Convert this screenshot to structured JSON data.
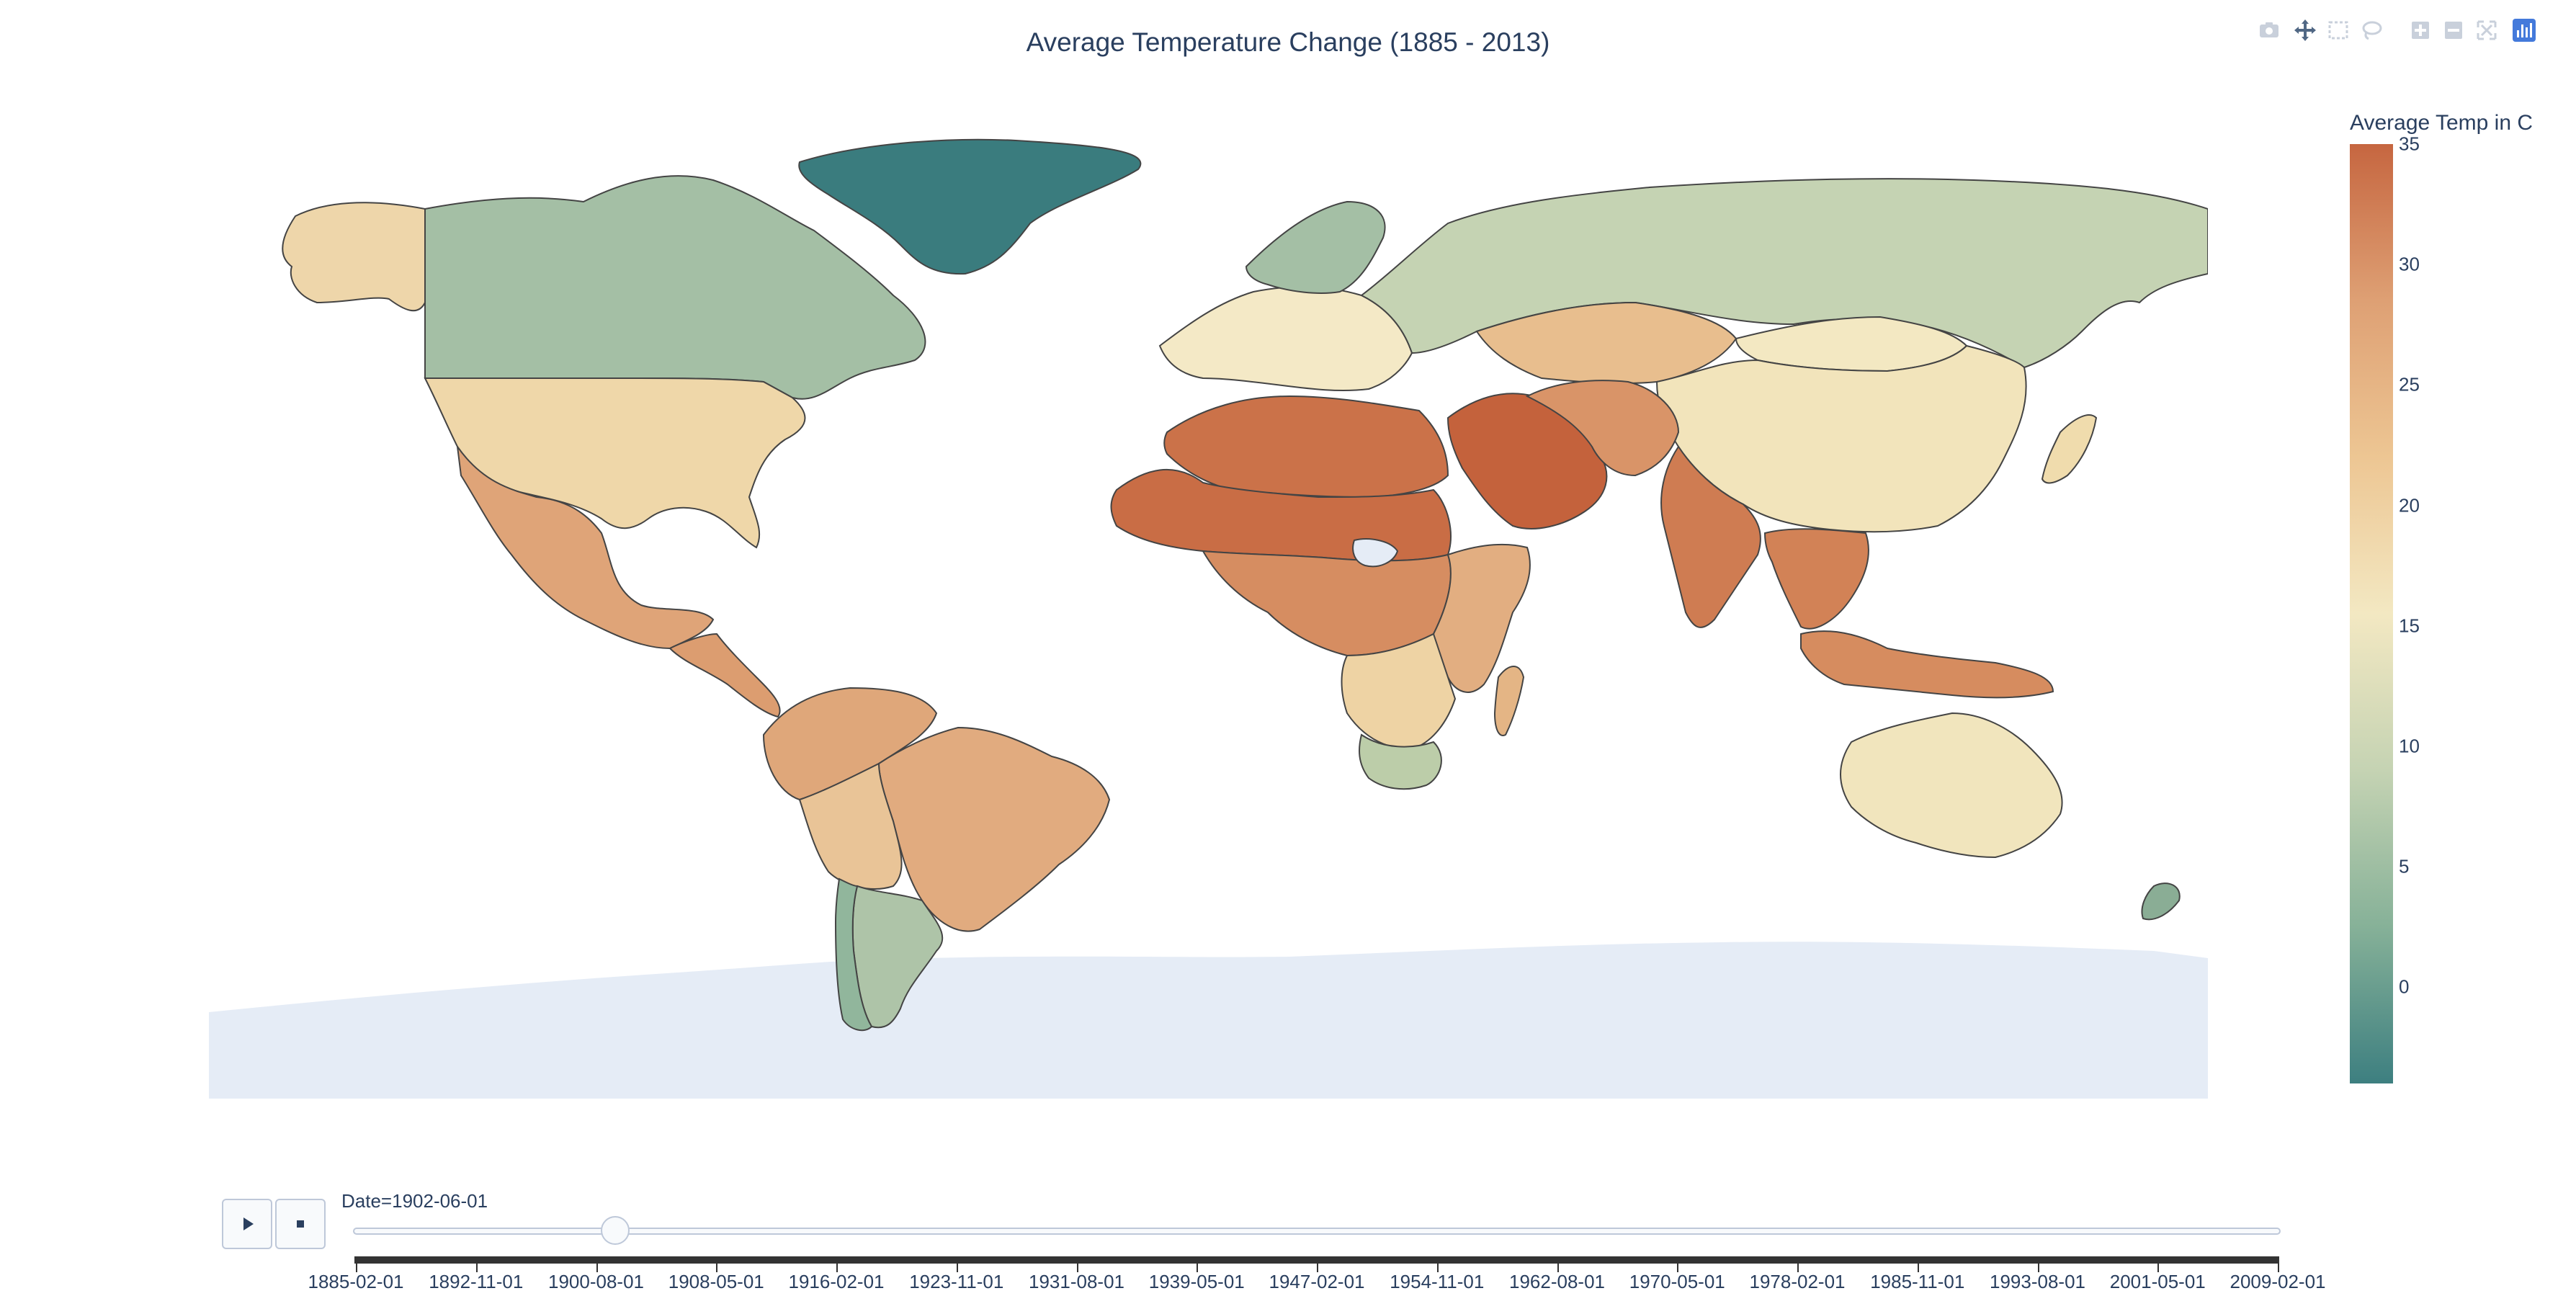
{
  "title": "Average Temperature Change (1885 - 2013)",
  "modebar": {
    "buttons": [
      {
        "name": "camera-icon",
        "label": "Download plot as a png"
      },
      {
        "name": "pan-icon",
        "label": "Pan"
      },
      {
        "name": "box-select-icon",
        "label": "Box Select"
      },
      {
        "name": "lasso-select-icon",
        "label": "Lasso Select"
      },
      {
        "name": "zoom-in-icon",
        "label": "Zoom in"
      },
      {
        "name": "zoom-out-icon",
        "label": "Zoom out"
      },
      {
        "name": "reset-view-icon",
        "label": "Reset"
      },
      {
        "name": "plotly-logo-icon",
        "label": "Produced with Plotly"
      }
    ]
  },
  "colorbar": {
    "title": "Average Temp in C",
    "min": -4,
    "max": 35,
    "ticks": [
      "35",
      "30",
      "25",
      "20",
      "15",
      "10",
      "5",
      "0"
    ],
    "tick_values": [
      35,
      30,
      25,
      20,
      15,
      10,
      5,
      0
    ],
    "colors": [
      "#3d7f80",
      "#86b198",
      "#c5d3b3",
      "#f3e8c2",
      "#edc693",
      "#dea074",
      "#c66640"
    ]
  },
  "slider": {
    "prefix": "Date=",
    "current": "1902-06-01",
    "current_label": "Date=1902-06-01",
    "progress": 0.135,
    "play_label": "Play",
    "stop_label": "Stop",
    "steps": [
      "1885-02-01",
      "1892-11-01",
      "1900-08-01",
      "1908-05-01",
      "1916-02-01",
      "1923-11-01",
      "1931-08-01",
      "1939-05-01",
      "1947-02-01",
      "1954-11-01",
      "1962-08-01",
      "1970-05-01",
      "1978-02-01",
      "1985-11-01",
      "1993-08-01",
      "2001-05-01",
      "2009-02-01"
    ]
  },
  "map_data": {
    "type": "choropleth",
    "colors": {
      "land": "#e5ecf6",
      "border": "#444444"
    },
    "regions": [
      {
        "name": "Greenland",
        "value": -3,
        "color": "#3a7c7e"
      },
      {
        "name": "Canada",
        "value": 6,
        "color": "#a4bfa5"
      },
      {
        "name": "Alaska",
        "value": 20,
        "color": "#eed6aa"
      },
      {
        "name": "United States",
        "value": 19,
        "color": "#efd7a9"
      },
      {
        "name": "Mexico",
        "value": 25,
        "color": "#dfa478"
      },
      {
        "name": "Central America",
        "value": 26,
        "color": "#dc9d70"
      },
      {
        "name": "Colombia-Venezuela",
        "value": 25,
        "color": "#dfa77a"
      },
      {
        "name": "Brazil",
        "value": 24,
        "color": "#e1ab7f"
      },
      {
        "name": "Peru-Bolivia",
        "value": 21,
        "color": "#e9c497"
      },
      {
        "name": "Argentina",
        "value": 9,
        "color": "#aec4a8"
      },
      {
        "name": "Chile",
        "value": 7,
        "color": "#91b69c"
      },
      {
        "name": "Europe",
        "value": 14,
        "color": "#f4e9c6"
      },
      {
        "name": "Scandinavia",
        "value": 6,
        "color": "#a4bfa5"
      },
      {
        "name": "Russia",
        "value": 10,
        "color": "#c5d3b3"
      },
      {
        "name": "Kazakhstan",
        "value": 22,
        "color": "#e8be8e"
      },
      {
        "name": "China",
        "value": 17,
        "color": "#f2e4bb"
      },
      {
        "name": "Mongolia",
        "value": 15,
        "color": "#f3e8c2"
      },
      {
        "name": "North Africa",
        "value": 30,
        "color": "#cb7249"
      },
      {
        "name": "Sahel",
        "value": 31,
        "color": "#c96d45"
      },
      {
        "name": "Arabia",
        "value": 33,
        "color": "#c4623c"
      },
      {
        "name": "Iran",
        "value": 26,
        "color": "#d99468"
      },
      {
        "name": "India",
        "value": 29,
        "color": "#cf7c52"
      },
      {
        "name": "Southeast Asia",
        "value": 28,
        "color": "#d28256"
      },
      {
        "name": "Central Africa",
        "value": 27,
        "color": "#d68d61"
      },
      {
        "name": "East Africa",
        "value": 24,
        "color": "#e2ae81"
      },
      {
        "name": "Southern Africa",
        "value": 18,
        "color": "#eed3a4"
      },
      {
        "name": "South Africa",
        "value": 10,
        "color": "#bccda9"
      },
      {
        "name": "Madagascar",
        "value": 23,
        "color": "#e4b585"
      },
      {
        "name": "Australia",
        "value": 16,
        "color": "#f1e5bd"
      },
      {
        "name": "Indonesia",
        "value": 27,
        "color": "#d68c5f"
      },
      {
        "name": "New Zealand",
        "value": 6,
        "color": "#8aad95"
      },
      {
        "name": "Japan",
        "value": 17,
        "color": "#f0dcad"
      },
      {
        "name": "Antarctica",
        "value": null,
        "color": "#e5ecf6"
      },
      {
        "name": "South Sudan",
        "value": null,
        "color": "#e5ecf6"
      }
    ]
  }
}
